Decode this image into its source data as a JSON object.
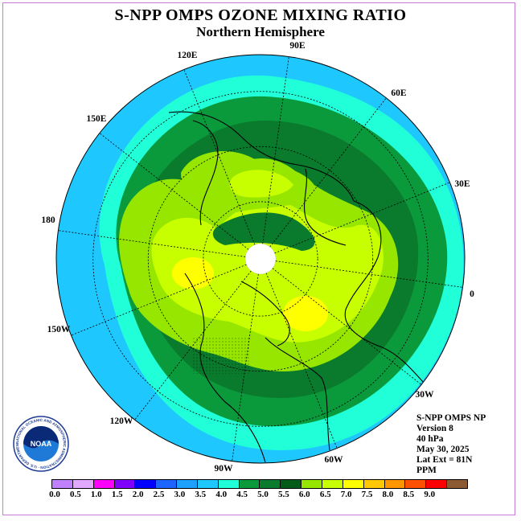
{
  "title": "S-NPP OMPS OZONE MIXING RATIO",
  "subtitle": "Northern Hemisphere",
  "info_lines": [
    "S-NPP OMPS NP",
    "Version 8",
    "40 hPa",
    "May 30, 2025",
    "Lat Ext = 81N",
    "PPM"
  ],
  "longitude_labels": [
    "120E",
    "90E",
    "60E",
    "150E",
    "30E",
    "180",
    "0",
    "150W",
    "30W",
    "120W",
    "60W",
    "90W"
  ],
  "logo_text": "NOAA",
  "logo_ring_text": "NATIONAL OCEANIC AND ATMOSPHERIC ADMINISTRATION · U.S. DEPARTMENT OF COMMERCE",
  "colorbar": {
    "ticks": [
      "0.0",
      "0.5",
      "1.0",
      "1.5",
      "2.0",
      "2.5",
      "3.0",
      "3.5",
      "4.0",
      "4.5",
      "5.0",
      "5.5",
      "6.0",
      "6.5",
      "7.0",
      "7.5",
      "8.0",
      "8.5",
      "9.0"
    ],
    "colors": [
      "#c080ff",
      "#e0a8ff",
      "#ff00ff",
      "#8000ff",
      "#0000ff",
      "#1e64ff",
      "#1ea0ff",
      "#1ec8ff",
      "#20ffd8",
      "#0a9a3c",
      "#0a7a2c",
      "#005a18",
      "#96e600",
      "#c8ff00",
      "#ffff00",
      "#ffc800",
      "#ff9600",
      "#ff5000",
      "#ff0000",
      "#8c5a32"
    ]
  },
  "map_colors": {
    "outer_ring": "#1ec8ff",
    "ring_40": "#20ffd8",
    "ring_45": "#0a9a3c",
    "ring_50": "#0a7a2c",
    "ring_55": "#96e600",
    "ring_60": "#c8ff00",
    "ring_65": "#ffff00",
    "pole_mask": "#ffffff",
    "coast": "#000000"
  }
}
